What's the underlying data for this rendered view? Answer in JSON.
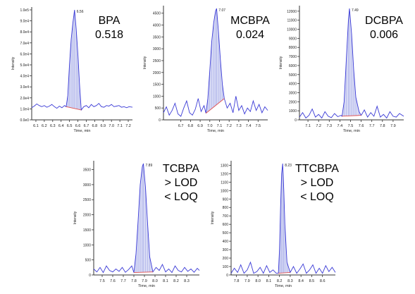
{
  "chart_data": [
    {
      "type": "line",
      "compound": "BPA",
      "value_label": "0.518",
      "condition_lines": [],
      "xlabel": "Time, min",
      "ylabel": "Intensity",
      "peak_label": "6.56",
      "xlim": [
        6.05,
        7.25
      ],
      "ylim": [
        0,
        100000.0
      ],
      "xticks": [
        "6.1",
        "6.2",
        "6.3",
        "6.4",
        "6.5",
        "6.6",
        "6.7",
        "6.8",
        "6.9",
        "7.0",
        "7.1",
        "7.2"
      ],
      "yticks": [
        "0.0e0",
        "1.0e4",
        "2.0e4",
        "3.0e4",
        "4.0e4",
        "5.0e4",
        "6.0e4",
        "7.0e4",
        "8.0e4",
        "9.0e4",
        "1.0e5"
      ],
      "ytick_values": [
        0,
        10000,
        20000,
        30000,
        40000,
        50000,
        60000,
        70000,
        80000,
        90000,
        100000
      ],
      "peak": {
        "rt": 6.56,
        "height": 100000,
        "start": 6.46,
        "end": 6.64
      },
      "baseline": [
        [
          6.46,
          12000
        ],
        [
          6.64,
          9000
        ]
      ],
      "x": [
        6.05,
        6.08,
        6.11,
        6.14,
        6.17,
        6.2,
        6.23,
        6.26,
        6.29,
        6.32,
        6.35,
        6.38,
        6.41,
        6.44,
        6.46,
        6.48,
        6.5,
        6.52,
        6.54,
        6.56,
        6.58,
        6.6,
        6.62,
        6.64,
        6.67,
        6.7,
        6.73,
        6.76,
        6.79,
        6.82,
        6.85,
        6.88,
        6.91,
        6.94,
        6.97,
        7.0,
        7.03,
        7.06,
        7.09,
        7.12,
        7.15,
        7.18,
        7.21,
        7.25
      ],
      "y": [
        11000,
        12500,
        14500,
        13000,
        12000,
        13000,
        11500,
        12500,
        14000,
        12000,
        10500,
        12500,
        11000,
        13000,
        12000,
        22000,
        50000,
        73000,
        88000,
        100000,
        82000,
        60000,
        32000,
        9000,
        12000,
        13000,
        11000,
        14000,
        12000,
        13000,
        15000,
        12000,
        11500,
        13000,
        12500,
        14000,
        12000,
        12500,
        13000,
        11500,
        12000,
        11000,
        12000,
        11500
      ]
    },
    {
      "type": "line",
      "compound": "MCBPA",
      "value_label": "0.024",
      "condition_lines": [],
      "xlabel": "Time, min",
      "ylabel": "Intensity",
      "peak_label": "7.07",
      "xlim": [
        6.52,
        7.6
      ],
      "ylim": [
        0,
        4700
      ],
      "xticks": [
        "6.7",
        "6.8",
        "6.9",
        "7.0",
        "7.1",
        "7.2",
        "7.3",
        "7.4",
        "7.5"
      ],
      "yticks": [
        "0",
        "500",
        "1000",
        "1500",
        "2000",
        "2500",
        "3000",
        "3500",
        "4000",
        "4500"
      ],
      "ytick_values": [
        0,
        500,
        1000,
        1500,
        2000,
        2500,
        3000,
        3500,
        4000,
        4500
      ],
      "peak": {
        "rt": 7.07,
        "height": 4700,
        "start": 6.96,
        "end": 7.15
      },
      "baseline": [
        [
          6.96,
          280
        ],
        [
          7.15,
          900
        ]
      ],
      "x": [
        6.52,
        6.55,
        6.58,
        6.61,
        6.64,
        6.67,
        6.7,
        6.73,
        6.76,
        6.79,
        6.82,
        6.85,
        6.88,
        6.91,
        6.94,
        6.96,
        6.98,
        7.0,
        7.02,
        7.04,
        7.06,
        7.07,
        7.09,
        7.11,
        7.13,
        7.15,
        7.18,
        7.21,
        7.24,
        7.27,
        7.3,
        7.33,
        7.36,
        7.39,
        7.42,
        7.45,
        7.48,
        7.51,
        7.54,
        7.57,
        7.6
      ],
      "y": [
        300,
        550,
        200,
        400,
        700,
        250,
        150,
        500,
        800,
        300,
        200,
        450,
        900,
        350,
        600,
        280,
        900,
        2100,
        3300,
        4100,
        4600,
        4700,
        3700,
        2500,
        1500,
        900,
        500,
        700,
        300,
        1000,
        400,
        600,
        250,
        500,
        350,
        800,
        400,
        650,
        300,
        550,
        400
      ]
    },
    {
      "type": "line",
      "compound": "DCBPA",
      "value_label": "0.006",
      "condition_lines": [],
      "xlabel": "Time, min",
      "ylabel": "Intensity",
      "peak_label": "7.49",
      "xlim": [
        7.02,
        8.0
      ],
      "ylim": [
        0,
        12300
      ],
      "xticks": [
        "7.1",
        "7.2",
        "7.3",
        "7.4",
        "7.5",
        "7.6",
        "7.7",
        "7.8",
        "7.9"
      ],
      "yticks": [
        "0",
        "1000",
        "2000",
        "3000",
        "4000",
        "5000",
        "6000",
        "7000",
        "8000",
        "9000",
        "10000",
        "11000",
        "12000"
      ],
      "ytick_values": [
        0,
        1000,
        2000,
        3000,
        4000,
        5000,
        6000,
        7000,
        8000,
        9000,
        10000,
        11000,
        12000
      ],
      "peak": {
        "rt": 7.49,
        "height": 12300,
        "start": 7.42,
        "end": 7.6
      },
      "baseline": [
        [
          7.42,
          400
        ],
        [
          7.6,
          500
        ]
      ],
      "x": [
        7.02,
        7.05,
        7.08,
        7.11,
        7.14,
        7.17,
        7.2,
        7.23,
        7.26,
        7.29,
        7.32,
        7.35,
        7.38,
        7.41,
        7.42,
        7.44,
        7.46,
        7.48,
        7.49,
        7.51,
        7.53,
        7.55,
        7.58,
        7.6,
        7.63,
        7.66,
        7.69,
        7.72,
        7.75,
        7.78,
        7.81,
        7.84,
        7.87,
        7.9,
        7.93,
        7.96,
        8.0
      ],
      "y": [
        300,
        800,
        200,
        500,
        1200,
        300,
        600,
        200,
        900,
        400,
        250,
        700,
        350,
        500,
        400,
        2000,
        6500,
        11000,
        12300,
        9500,
        5500,
        2500,
        900,
        500,
        1100,
        300,
        800,
        400,
        1500,
        300,
        600,
        200,
        900,
        400,
        300,
        700,
        400
      ]
    },
    {
      "type": "line",
      "compound": "TCBPA",
      "value_label": "",
      "condition_lines": [
        "> LOD",
        "< LOQ"
      ],
      "xlabel": "Time, min",
      "ylabel": "Intensity",
      "peak_label": "7.89",
      "xlim": [
        7.42,
        8.42
      ],
      "ylim": [
        0,
        3700
      ],
      "xticks": [
        "7.5",
        "7.6",
        "7.7",
        "7.8",
        "7.9",
        "8.0",
        "8.1",
        "8.2",
        "8.3"
      ],
      "yticks": [
        "0",
        "500",
        "1000",
        "1500",
        "2000",
        "2500",
        "3000",
        "3500"
      ],
      "ytick_values": [
        0,
        500,
        1000,
        1500,
        2000,
        2500,
        3000,
        3500
      ],
      "peak": {
        "rt": 7.89,
        "height": 3700,
        "start": 7.8,
        "end": 7.98
      },
      "baseline": [
        [
          7.8,
          80
        ],
        [
          7.98,
          100
        ]
      ],
      "x": [
        7.42,
        7.45,
        7.48,
        7.51,
        7.54,
        7.57,
        7.6,
        7.63,
        7.66,
        7.69,
        7.72,
        7.75,
        7.78,
        7.8,
        7.82,
        7.84,
        7.86,
        7.88,
        7.89,
        7.91,
        7.93,
        7.95,
        7.98,
        8.01,
        8.04,
        8.07,
        8.1,
        8.13,
        8.16,
        8.19,
        8.22,
        8.25,
        8.28,
        8.31,
        8.34,
        8.37,
        8.4,
        8.42
      ],
      "y": [
        200,
        100,
        250,
        80,
        300,
        150,
        100,
        200,
        120,
        250,
        90,
        180,
        300,
        80,
        700,
        1800,
        3000,
        3600,
        3700,
        2900,
        1700,
        600,
        100,
        250,
        150,
        350,
        100,
        200,
        80,
        300,
        150,
        100,
        250,
        120,
        200,
        90,
        220,
        150
      ]
    },
    {
      "type": "line",
      "compound": "TTCBPA",
      "value_label": "",
      "condition_lines": [
        "> LOD",
        "< LOQ"
      ],
      "xlabel": "Time, min",
      "ylabel": "Intensity",
      "peak_label": "8.23",
      "xlim": [
        7.75,
        8.72
      ],
      "ylim": [
        0,
        1320
      ],
      "xticks": [
        "7.8",
        "7.9",
        "8.0",
        "8.1",
        "8.2",
        "8.3",
        "8.4",
        "8.5",
        "8.6"
      ],
      "yticks": [
        "0",
        "100",
        "200",
        "300",
        "400",
        "500",
        "600",
        "700",
        "800",
        "900",
        "1000",
        "1100",
        "1200",
        "1300"
      ],
      "ytick_values": [
        0,
        100,
        200,
        300,
        400,
        500,
        600,
        700,
        800,
        900,
        1000,
        1100,
        1200,
        1300
      ],
      "peak": {
        "rt": 8.23,
        "height": 1320,
        "start": 8.19,
        "end": 8.3
      },
      "baseline": [
        [
          8.19,
          20
        ],
        [
          8.3,
          30
        ]
      ],
      "x": [
        7.75,
        7.78,
        7.81,
        7.84,
        7.87,
        7.9,
        7.93,
        7.96,
        7.99,
        8.02,
        8.05,
        8.08,
        8.11,
        8.14,
        8.17,
        8.19,
        8.2,
        8.21,
        8.22,
        8.23,
        8.24,
        8.25,
        8.27,
        8.3,
        8.33,
        8.36,
        8.39,
        8.42,
        8.45,
        8.48,
        8.51,
        8.54,
        8.57,
        8.6,
        8.63,
        8.66,
        8.69,
        8.72
      ],
      "y": [
        20,
        80,
        30,
        120,
        20,
        60,
        150,
        20,
        40,
        90,
        20,
        110,
        30,
        60,
        20,
        20,
        300,
        800,
        1200,
        1320,
        1000,
        600,
        150,
        30,
        100,
        20,
        70,
        130,
        20,
        60,
        120,
        20,
        80,
        20,
        110,
        40,
        90,
        30
      ]
    }
  ]
}
